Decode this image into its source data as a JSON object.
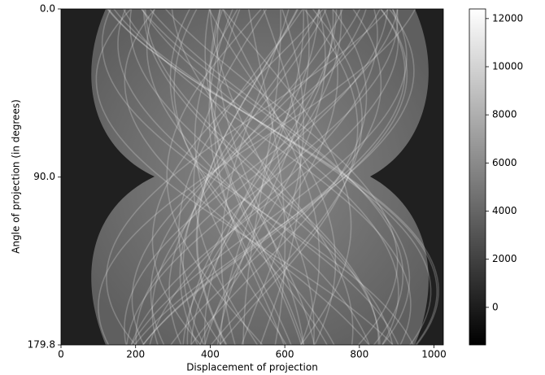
{
  "chart_data": {
    "type": "image",
    "xlabel": "Displacement of projection",
    "ylabel": "Angle of projection (in degrees)",
    "xlim": [
      0,
      1025
    ],
    "xticks": [
      0,
      200,
      400,
      600,
      800,
      1000
    ],
    "ylim": [
      179.8,
      0
    ],
    "yticks": [
      {
        "value": 0,
        "label": "0.0"
      },
      {
        "value": 90,
        "label": "90.0"
      },
      {
        "value": 179.8,
        "label": "179.8"
      }
    ],
    "colormap": "gray",
    "colorbar": {
      "lim": [
        -1560,
        12400
      ],
      "ticks": [
        0,
        2000,
        4000,
        6000,
        8000,
        10000,
        12000
      ]
    }
  }
}
